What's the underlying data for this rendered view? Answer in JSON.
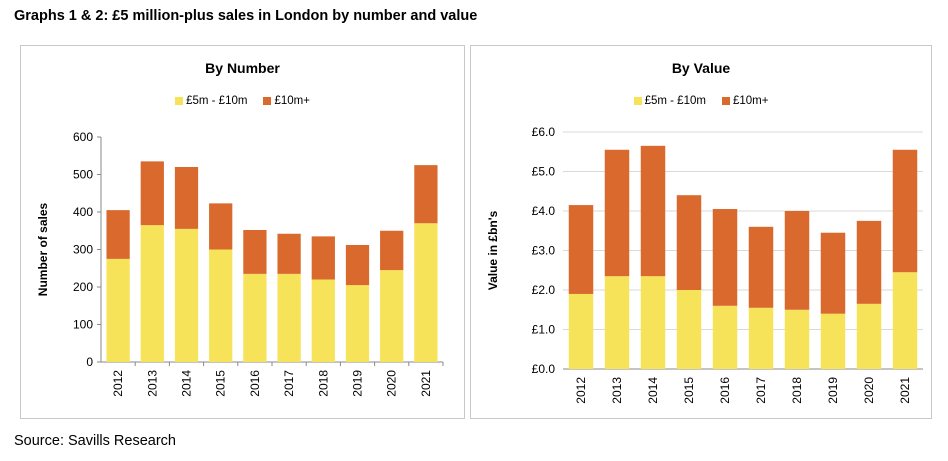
{
  "page": {
    "heading": "Graphs 1 & 2: £5 million-plus sales in London by number and value",
    "source": "Source: Savills Research"
  },
  "colors": {
    "low_band": "#F7E35A",
    "high_band": "#D9692C"
  },
  "chart_data": [
    {
      "type": "bar",
      "stacked": true,
      "title": "By Number",
      "ylabel": "Number of sales",
      "xlabel": "",
      "categories": [
        "2012",
        "2013",
        "2014",
        "2015",
        "2016",
        "2017",
        "2018",
        "2019",
        "2020",
        "2021"
      ],
      "series": [
        {
          "name": "£5m - £10m",
          "values": [
            275,
            365,
            355,
            300,
            235,
            235,
            220,
            205,
            245,
            370
          ]
        },
        {
          "name": "£10m+",
          "values": [
            130,
            170,
            165,
            123,
            117,
            107,
            115,
            107,
            105,
            155
          ]
        }
      ],
      "ylim": [
        0,
        600
      ],
      "yticks": [
        "0",
        "100",
        "200",
        "300",
        "400",
        "500",
        "600"
      ],
      "legend": "top-center",
      "grid": false
    },
    {
      "type": "bar",
      "stacked": true,
      "title": "By Value",
      "ylabel": "Value in £bn's",
      "xlabel": "",
      "categories": [
        "2012",
        "2013",
        "2014",
        "2015",
        "2016",
        "2017",
        "2018",
        "2019",
        "2020",
        "2021"
      ],
      "series": [
        {
          "name": "£5m - £10m",
          "values": [
            1.9,
            2.35,
            2.35,
            2.0,
            1.6,
            1.55,
            1.5,
            1.4,
            1.65,
            2.45
          ]
        },
        {
          "name": "£10m+",
          "values": [
            2.25,
            3.2,
            3.3,
            2.4,
            2.45,
            2.05,
            2.5,
            2.05,
            2.1,
            3.1
          ]
        }
      ],
      "ylim": [
        0,
        6.0
      ],
      "yticks": [
        "£0.0",
        "£1.0",
        "£2.0",
        "£3.0",
        "£4.0",
        "£5.0",
        "£6.0"
      ],
      "legend": "top-center",
      "grid": true
    }
  ]
}
